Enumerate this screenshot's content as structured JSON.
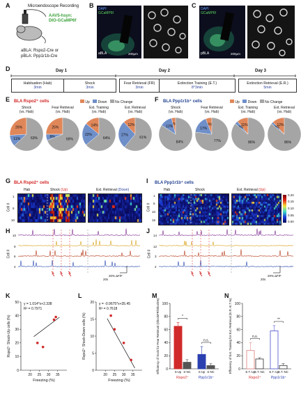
{
  "panelA": {
    "letter": "A",
    "recording": "Microendoscope Recording",
    "virus_line1": "AAV5-hsyn:",
    "virus_line2": "DIO-GCaMP6f",
    "mouse_line1": "aBLA: Rspo2-Cre or",
    "mouse_line2": "pBLA: Ppp1r1b-Cre"
  },
  "panelB": {
    "letter": "B",
    "dapi": "DAPI",
    "gcamp": "GCaMP6f",
    "region": "aBLA",
    "scale": "200μm"
  },
  "panelC": {
    "letter": "C",
    "dapi": "DAPI",
    "gcamp": "GCaMP6f",
    "region": "pBLA",
    "scale": "200μm"
  },
  "panelD": {
    "letter": "D",
    "days": [
      "Day 1",
      "Day 2",
      "Day 3"
    ],
    "blocks": [
      {
        "name": "Habituation (Hab)",
        "dur": "3min"
      },
      {
        "name": "Shock",
        "dur": "3min"
      },
      {
        "name": "Fear Retrieval (FR)",
        "dur": "3min"
      },
      {
        "name": "Extinction Training (E.T.)",
        "dur": "8*3min"
      },
      {
        "name": "Extinction Retrieval (E.R.)",
        "dur": "5min"
      }
    ]
  },
  "panelE": {
    "letter": "E",
    "title": "BLA Rspo2⁺ cells",
    "legend": [
      "Up",
      "Down",
      "No Change"
    ],
    "pies": [
      {
        "l1": "Shock",
        "l2": "(vs. Hab)",
        "up": 26,
        "down": 11,
        "nc": 63
      },
      {
        "l1": "Fear Retrieval",
        "l2": "(vs. Hab)",
        "up": 25,
        "down": 6,
        "nc": 69
      },
      {
        "l1": "Ext. Training",
        "l2": "(vs. Hab)",
        "up": 14,
        "down": 22,
        "nc": 64
      },
      {
        "l1": "Ext. Retrieval",
        "l2": "(vs. Hab)",
        "up": 12,
        "down": 27,
        "nc": 61
      }
    ]
  },
  "panelF": {
    "letter": "F",
    "title": "BLA Ppp1r1b⁺ cells",
    "legend": [
      "Up",
      "Down",
      "No Change"
    ],
    "pies": [
      {
        "l1": "Shock",
        "l2": "(vs. Hab)",
        "up": 4,
        "down": 12,
        "nc": 84
      },
      {
        "l1": "Fear Retrieval",
        "l2": "(vs. Hab)",
        "up": 6,
        "down": 17,
        "nc": 77
      },
      {
        "l1": "Ext. Training",
        "l2": "(vs. Hab)",
        "up": 11,
        "down": 3,
        "nc": 86
      },
      {
        "l1": "Ext. Retrieval",
        "l2": "(vs. Hab)",
        "up": 12,
        "down": 2,
        "nc": 86
      }
    ]
  },
  "panelG": {
    "letter": "G",
    "title": "BLA Rspo2⁺ cells",
    "hab": "Hab",
    "shock": "Shock",
    "shock_paren": "(Up)",
    "er": "Ext. Retrieval",
    "er_paren": "(Down)",
    "ylabel": "Cell #",
    "ticks": [
      "1",
      "5",
      "10"
    ]
  },
  "panelI": {
    "letter": "I",
    "title": "BLA Ppp1r1b⁺ cells",
    "hab": "Hab",
    "shock": "Shock",
    "er": "Ext. Retrieval",
    "er_paren": "(Up)",
    "ylabel": "Cell #",
    "ticks": [
      "1",
      "5",
      "10",
      "15"
    ],
    "colorbar_ticks": [
      "0.20",
      "0.15",
      "0.10",
      "0.05",
      "0.00"
    ]
  },
  "panelH": {
    "letter": "H",
    "ylabel": "Cell #",
    "cells": [
      "10",
      "9",
      "6",
      "4"
    ],
    "scale_y": "20% ΔF/F",
    "scale_x": "20s"
  },
  "panelJ": {
    "letter": "J",
    "ylabel": "Cell #",
    "cells": [
      "14",
      "12",
      "3",
      "2"
    ],
    "scale_y": "20% ΔF/F",
    "scale_x": "20s"
  },
  "chart_data": [
    {
      "panel": "K",
      "type": "scatter",
      "ylabel": "Rspo2⁺ Shock-Up cells (%)",
      "xlabel": "Freezing (%)",
      "equation": "y = 1.014*x+2.338",
      "r2": "R² = 0.7971",
      "xlim": [
        15,
        40
      ],
      "ylim": [
        0,
        50
      ],
      "xticks": [
        "20",
        "25",
        "30",
        "35"
      ],
      "yticks": [
        "0",
        "10",
        "20",
        "30",
        "40",
        "50"
      ],
      "points": [
        [
          24,
          20
        ],
        [
          27,
          17
        ],
        [
          33,
          37
        ],
        [
          34,
          39
        ]
      ]
    },
    {
      "panel": "L",
      "type": "scatter",
      "ylabel": "Rspo2⁺ Shock-Down cells (%)",
      "xlabel": "Freezing (%)",
      "equation": "y = -0.9675*x+35.45",
      "r2": "R² = 0.7618",
      "xlim": [
        15,
        40
      ],
      "ylim": [
        0,
        20
      ],
      "xticks": [
        "20",
        "25",
        "30",
        "35"
      ],
      "yticks": [
        "0",
        "5",
        "10",
        "15",
        "20"
      ],
      "points": [
        [
          23,
          16
        ],
        [
          25,
          12
        ],
        [
          30,
          8
        ],
        [
          34,
          3
        ]
      ]
    },
    {
      "panel": "M",
      "type": "bar",
      "ylabel": "Efficiency of Sock for Fear Retrieval (ShockFR/Shock%)",
      "ylim": [
        0,
        100
      ],
      "yticks": [
        "0",
        "20",
        "40",
        "60",
        "80",
        "100"
      ],
      "categories": [
        "S-Up",
        "S-NC",
        "S-Up",
        "S-NC"
      ],
      "groups": [
        "Rspo2⁺",
        "Ppp1r1b⁺"
      ],
      "values": [
        65,
        10,
        22,
        5
      ],
      "errors": [
        6,
        4,
        12,
        3
      ],
      "sig": [
        "*",
        "n.s."
      ]
    },
    {
      "panel": "N",
      "type": "bar",
      "ylabel": "Efficiency of Ext. Training for Ext. Retrieval (E.R.-E.T.%)",
      "ylim": [
        0,
        100
      ],
      "yticks": [
        "0",
        "20",
        "40",
        "60",
        "80",
        "100"
      ],
      "categories": [
        "E.T.-Up",
        "E.T.-NC",
        "E.T.-Up",
        "E.T.-NC"
      ],
      "groups": [
        "Rspo2⁺",
        "Ppp1r1b⁺"
      ],
      "values": [
        28,
        15,
        58,
        5
      ],
      "errors": [
        12,
        2,
        8,
        3
      ],
      "sig": [
        "n.s.",
        "**"
      ]
    }
  ],
  "colors": {
    "up": "#e0875a",
    "down": "#6f8fc9",
    "nc": "#a5a5a5",
    "rspo": "#d12a2a",
    "ppp": "#2a3fb0"
  }
}
